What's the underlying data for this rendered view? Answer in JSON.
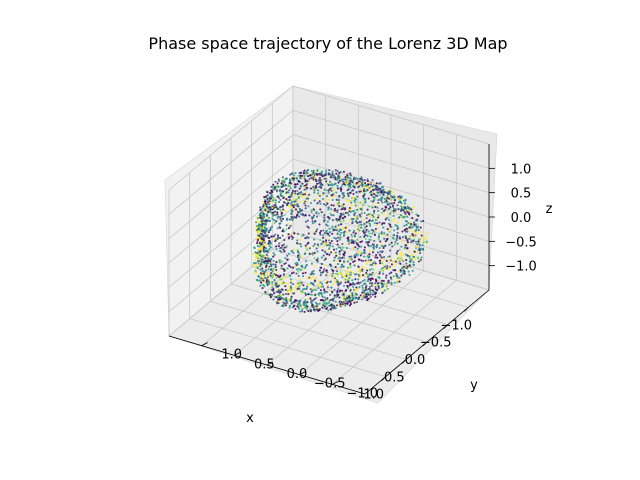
{
  "chart_data": {
    "type": "scatter",
    "projection": "3d",
    "title": "Phase space trajectory of the Lorenz 3D Map",
    "xlabel": "x",
    "ylabel": "y",
    "zlabel": "z",
    "xlim": [
      -1.5,
      1.5
    ],
    "ylim": [
      -1.5,
      1.5
    ],
    "zlim": [
      -1.5,
      1.5
    ],
    "xticks": [
      "−1.0",
      "−0.5",
      "0.0",
      "0.5",
      "1.0"
    ],
    "yticks": [
      "−1.0",
      "−0.5",
      "0.0",
      "0.5",
      "1.0"
    ],
    "zticks": [
      "−1.0",
      "−0.5",
      "0.0",
      "0.5",
      "1.0"
    ],
    "grid": true,
    "colormap": "viridis",
    "colors": {
      "pane_light": "#f2f2f2",
      "pane_mid": "#e6e6e6",
      "pane_dark": "#ebebeb",
      "grid": "#c8c8c8",
      "viridis": [
        "#440154",
        "#3b528b",
        "#21918c",
        "#5ec962",
        "#fde725"
      ]
    }
  }
}
